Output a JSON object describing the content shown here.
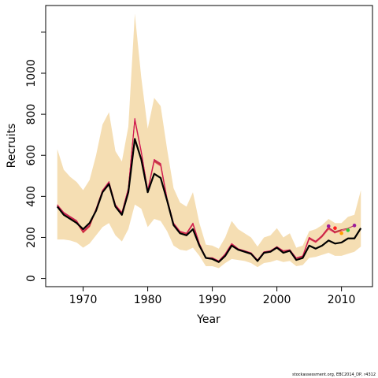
{
  "chart_data": {
    "type": "line",
    "xlabel": "Year",
    "ylabel": "Recruits",
    "xlim": [
      1964.2,
      2014.8
    ],
    "ylim": [
      -40,
      1330
    ],
    "x_ticks": [
      1970,
      1980,
      1990,
      2000,
      2010
    ],
    "y_ticks": [
      0,
      200,
      400,
      600,
      800,
      1000
    ],
    "y_minor_ticks": [
      1200
    ],
    "grid": false,
    "colors": {
      "band": "#f5deb3",
      "estimate": "#000000",
      "retrospective": [
        "#d4145a",
        "#c0392b",
        "#e84c6a",
        "#b5334f",
        "#9b1b5e"
      ],
      "endpoints": [
        "#9b1b9b",
        "#ff2020",
        "#ff9f00",
        "#33cc33",
        "#9b1b9b"
      ]
    },
    "years": [
      1966,
      1967,
      1968,
      1969,
      1970,
      1971,
      1972,
      1973,
      1974,
      1975,
      1976,
      1977,
      1978,
      1979,
      1980,
      1981,
      1982,
      1983,
      1984,
      1985,
      1986,
      1987,
      1988,
      1989,
      1990,
      1991,
      1992,
      1993,
      1994,
      1995,
      1996,
      1997,
      1998,
      1999,
      2000,
      2001,
      2002,
      2003,
      2004,
      2005,
      2006,
      2007,
      2008,
      2009,
      2010,
      2011,
      2012,
      2013
    ],
    "band_upper": [
      630,
      530,
      495,
      470,
      430,
      480,
      600,
      750,
      810,
      620,
      570,
      740,
      1290,
      980,
      730,
      880,
      840,
      630,
      440,
      370,
      350,
      420,
      270,
      165,
      160,
      145,
      200,
      280,
      240,
      220,
      200,
      155,
      200,
      210,
      245,
      200,
      220,
      150,
      160,
      230,
      240,
      260,
      290,
      270,
      270,
      300,
      310,
      430
    ],
    "band_lower": [
      190,
      190,
      185,
      175,
      150,
      170,
      210,
      250,
      270,
      210,
      180,
      240,
      360,
      340,
      250,
      290,
      280,
      230,
      160,
      140,
      135,
      150,
      110,
      60,
      60,
      50,
      75,
      95,
      90,
      85,
      75,
      55,
      75,
      80,
      90,
      80,
      85,
      60,
      65,
      100,
      105,
      115,
      125,
      110,
      110,
      120,
      130,
      155
    ],
    "series": [
      {
        "name": "",
        "values": [
          350,
          310,
          290,
          270,
          240,
          270,
          330,
          420,
          460,
          350,
          310,
          420,
          680,
          580,
          420,
          510,
          490,
          380,
          260,
          220,
          210,
          240,
          160,
          100,
          95,
          80,
          110,
          160,
          140,
          130,
          120,
          85,
          125,
          130,
          150,
          125,
          135,
          90,
          100,
          160,
          145,
          160,
          185,
          170,
          175,
          195,
          195,
          245
        ]
      },
      {
        "name": "",
        "values": [
          360,
          320,
          300,
          280,
          230,
          260,
          340,
          430,
          470,
          360,
          320,
          440,
          780,
          620,
          430,
          580,
          560,
          390,
          270,
          230,
          220,
          270,
          170,
          100,
          100,
          85,
          120,
          170,
          145,
          135,
          125,
          90,
          130,
          135,
          155,
          135,
          140,
          100,
          110,
          200,
          180,
          210,
          250,
          220
        ]
      },
      {
        "name": "",
        "values": [
          355,
          318,
          298,
          275,
          225,
          255,
          336,
          425,
          468,
          356,
          318,
          436,
          772,
          615,
          426,
          572,
          552,
          384,
          266,
          226,
          218,
          266,
          168,
          99,
          99,
          84,
          118,
          168,
          143,
          133,
          123,
          88,
          128,
          133,
          153,
          133,
          138,
          98,
          108,
          195,
          178,
          205,
          245,
          225,
          235
        ]
      },
      {
        "name": "",
        "values": [
          352,
          315,
          295,
          272,
          222,
          252,
          334,
          422,
          466,
          354,
          316,
          434,
          768,
          612,
          424,
          568,
          548,
          381,
          264,
          224,
          216,
          262,
          166,
          98,
          98,
          83,
          116,
          166,
          142,
          132,
          122,
          87,
          126,
          132,
          152,
          132,
          137,
          97,
          106,
          192,
          175,
          202,
          240,
          222,
          232,
          240
        ]
      },
      {
        "name": "",
        "values": [
          358,
          322,
          302,
          282,
          228,
          258,
          338,
          428,
          472,
          358,
          322,
          438,
          776,
          618,
          428,
          576,
          556,
          387,
          268,
          228,
          220,
          268,
          170,
          101,
          101,
          86,
          119,
          169,
          144,
          134,
          124,
          89,
          129,
          134,
          154,
          134,
          139,
          99,
          109,
          198,
          182,
          208,
          248,
          228,
          238,
          244,
          258
        ]
      }
    ],
    "endpoints": [
      {
        "year": 2008,
        "value": 255
      },
      {
        "year": 2009,
        "value": 245
      },
      {
        "year": 2010,
        "value": 220
      },
      {
        "year": 2011,
        "value": 235
      },
      {
        "year": 2012,
        "value": 258
      }
    ]
  },
  "credit": "stockassessment.org, EBC2014_DP, r4312"
}
